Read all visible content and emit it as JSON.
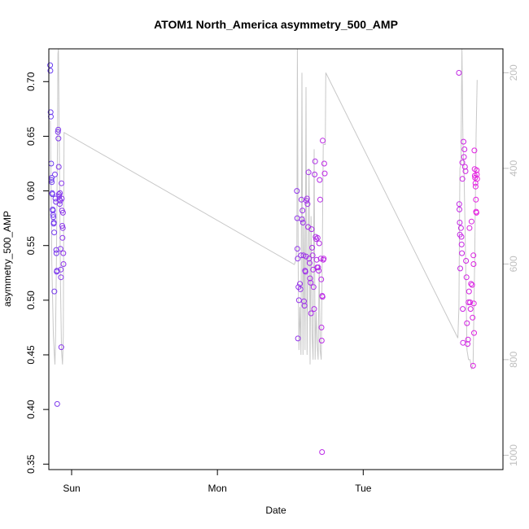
{
  "chart_data": {
    "type": "scatter",
    "title": "ATOM1 North_America asymmetry_500_AMP",
    "xlabel": "Date",
    "ylabel": "asymmetry_500_AMP",
    "x_axis": {
      "kind": "date",
      "range": [
        "Sat 20:15",
        "Tue 23:00"
      ],
      "tick_labels": [
        "Sun",
        "Mon",
        "Tue"
      ],
      "tick_values": [
        "Sun 00:00",
        "Mon 00:00",
        "Tue 00:00"
      ]
    },
    "y_axis": {
      "range": [
        0.345,
        0.73
      ],
      "ticks": [
        0.35,
        0.4,
        0.45,
        0.5,
        0.55,
        0.6,
        0.65,
        0.7
      ],
      "tick_labels": [
        "0.35",
        "0.40",
        "0.45",
        "0.50",
        "0.55",
        "0.60",
        "0.65",
        "0.70"
      ]
    },
    "y2_axis": {
      "range": [
        1030,
        150
      ],
      "ticks": [
        200,
        400,
        600,
        800,
        1000
      ],
      "tick_labels": [
        "200",
        "400",
        "600",
        "800",
        "1000"
      ],
      "color": "#bfbfbf"
    },
    "grid": false,
    "legend": "none",
    "series": [
      {
        "marker": "open-circle",
        "color_gradient": [
          "#6a3ff0",
          "#e81ee0"
        ],
        "points": [
          [
            "Sat 20:28",
            0.715
          ],
          [
            "Sat 20:30",
            0.71
          ],
          [
            "Sat 20:33",
            0.672
          ],
          [
            "Sat 20:35",
            0.668
          ],
          [
            "Sat 20:38",
            0.625
          ],
          [
            "Sat 20:40",
            0.61
          ],
          [
            "Sat 20:43",
            0.612
          ],
          [
            "Sat 20:45",
            0.608
          ],
          [
            "Sat 20:48",
            0.598
          ],
          [
            "Sat 20:50",
            0.597
          ],
          [
            "Sat 20:53",
            0.583
          ],
          [
            "Sat 20:55",
            0.582
          ],
          [
            "Sat 20:58",
            0.578
          ],
          [
            "Sat 21:00",
            0.576
          ],
          [
            "Sat 21:03",
            0.57
          ],
          [
            "Sat 21:05",
            0.571
          ],
          [
            "Sat 21:08",
            0.562
          ],
          [
            "Sat 21:10",
            0.508
          ],
          [
            "Sat 21:15",
            0.615
          ],
          [
            "Sat 21:20",
            0.593
          ],
          [
            "Sat 21:25",
            0.59
          ],
          [
            "Sat 21:28",
            0.546
          ],
          [
            "Sat 21:30",
            0.543
          ],
          [
            "Sat 21:33",
            0.526
          ],
          [
            "Sat 21:35",
            0.527
          ],
          [
            "Sat 21:38",
            0.405
          ],
          [
            "Sat 21:45",
            0.654
          ],
          [
            "Sat 21:48",
            0.656
          ],
          [
            "Sat 21:50",
            0.648
          ],
          [
            "Sat 21:53",
            0.622
          ],
          [
            "Sat 21:55",
            0.597
          ],
          [
            "Sat 21:58",
            0.595
          ],
          [
            "Sat 22:00",
            0.592
          ],
          [
            "Sat 22:03",
            0.588
          ],
          [
            "Sat 22:05",
            0.598
          ],
          [
            "Sat 22:08",
            0.591
          ],
          [
            "Sat 22:10",
            0.547
          ],
          [
            "Sat 22:13",
            0.528
          ],
          [
            "Sat 22:15",
            0.521
          ],
          [
            "Sat 22:18",
            0.457
          ],
          [
            "Sat 22:20",
            0.607
          ],
          [
            "Sat 22:23",
            0.593
          ],
          [
            "Sat 22:25",
            0.582
          ],
          [
            "Sat 22:28",
            0.568
          ],
          [
            "Sat 22:30",
            0.557
          ],
          [
            "Sat 22:33",
            0.566
          ],
          [
            "Sat 22:35",
            0.58
          ],
          [
            "Sat 22:38",
            0.543
          ],
          [
            "Sat 22:40",
            0.533
          ],
          [
            "Mon 13:05",
            0.6
          ],
          [
            "Mon 13:08",
            0.575
          ],
          [
            "Mon 13:10",
            0.547
          ],
          [
            "Mon 13:13",
            0.538
          ],
          [
            "Mon 13:15",
            0.465
          ],
          [
            "Mon 13:20",
            0.512
          ],
          [
            "Mon 13:25",
            0.5
          ],
          [
            "Mon 13:35",
            0.515
          ],
          [
            "Mon 13:40",
            0.51
          ],
          [
            "Mon 13:45",
            0.541
          ],
          [
            "Mon 13:50",
            0.592
          ],
          [
            "Mon 13:55",
            0.574
          ],
          [
            "Mon 14:00",
            0.582
          ],
          [
            "Mon 14:05",
            0.571
          ],
          [
            "Mon 14:10",
            0.541
          ],
          [
            "Mon 14:15",
            0.499
          ],
          [
            "Mon 14:20",
            0.495
          ],
          [
            "Mon 14:25",
            0.527
          ],
          [
            "Mon 14:30",
            0.526
          ],
          [
            "Mon 14:35",
            0.54
          ],
          [
            "Mon 14:40",
            0.591
          ],
          [
            "Mon 14:45",
            0.593
          ],
          [
            "Mon 14:50",
            0.588
          ],
          [
            "Mon 14:55",
            0.567
          ],
          [
            "Mon 15:00",
            0.617
          ],
          [
            "Mon 15:05",
            0.538
          ],
          [
            "Mon 15:10",
            0.534
          ],
          [
            "Mon 15:15",
            0.52
          ],
          [
            "Mon 15:20",
            0.516
          ],
          [
            "Mon 15:25",
            0.488
          ],
          [
            "Mon 15:30",
            0.565
          ],
          [
            "Mon 15:35",
            0.548
          ],
          [
            "Mon 15:40",
            0.541
          ],
          [
            "Mon 15:45",
            0.528
          ],
          [
            "Mon 15:50",
            0.512
          ],
          [
            "Mon 15:55",
            0.492
          ],
          [
            "Mon 16:00",
            0.615
          ],
          [
            "Mon 16:05",
            0.627
          ],
          [
            "Mon 16:10",
            0.558
          ],
          [
            "Mon 16:15",
            0.556
          ],
          [
            "Mon 16:20",
            0.537
          ],
          [
            "Mon 16:25",
            0.53
          ],
          [
            "Mon 16:30",
            0.557
          ],
          [
            "Mon 16:35",
            0.53
          ],
          [
            "Mon 16:40",
            0.527
          ],
          [
            "Mon 16:45",
            0.552
          ],
          [
            "Mon 16:50",
            0.61
          ],
          [
            "Mon 16:55",
            0.592
          ],
          [
            "Mon 17:00",
            0.538
          ],
          [
            "Mon 17:05",
            0.519
          ],
          [
            "Mon 17:08",
            0.475
          ],
          [
            "Mon 17:10",
            0.463
          ],
          [
            "Mon 17:13",
            0.361
          ],
          [
            "Mon 17:15",
            0.504
          ],
          [
            "Mon 17:18",
            0.503
          ],
          [
            "Mon 17:20",
            0.646
          ],
          [
            "Mon 17:25",
            0.537
          ],
          [
            "Mon 17:30",
            0.538
          ],
          [
            "Mon 17:35",
            0.625
          ],
          [
            "Mon 17:40",
            0.616
          ],
          [
            "Tue 15:45",
            0.708
          ],
          [
            "Tue 15:48",
            0.588
          ],
          [
            "Tue 15:50",
            0.583
          ],
          [
            "Tue 15:53",
            0.571
          ],
          [
            "Tue 15:55",
            0.56
          ],
          [
            "Tue 15:58",
            0.529
          ],
          [
            "Tue 16:05",
            0.566
          ],
          [
            "Tue 16:10",
            0.558
          ],
          [
            "Tue 16:12",
            0.551
          ],
          [
            "Tue 16:15",
            0.543
          ],
          [
            "Tue 16:18",
            0.626
          ],
          [
            "Tue 16:20",
            0.611
          ],
          [
            "Tue 16:23",
            0.492
          ],
          [
            "Tue 16:25",
            0.461
          ],
          [
            "Tue 16:30",
            0.645
          ],
          [
            "Tue 16:35",
            0.631
          ],
          [
            "Tue 16:40",
            0.638
          ],
          [
            "Tue 16:45",
            0.622
          ],
          [
            "Tue 16:50",
            0.618
          ],
          [
            "Tue 16:55",
            0.536
          ],
          [
            "Tue 17:00",
            0.521
          ],
          [
            "Tue 17:05",
            0.479
          ],
          [
            "Tue 17:10",
            0.46
          ],
          [
            "Tue 17:15",
            0.464
          ],
          [
            "Tue 17:20",
            0.498
          ],
          [
            "Tue 17:25",
            0.508
          ],
          [
            "Tue 17:30",
            0.566
          ],
          [
            "Tue 17:35",
            0.498
          ],
          [
            "Tue 17:40",
            0.492
          ],
          [
            "Tue 17:45",
            0.515
          ],
          [
            "Tue 17:50",
            0.572
          ],
          [
            "Tue 17:55",
            0.514
          ],
          [
            "Tue 18:00",
            0.484
          ],
          [
            "Tue 18:05",
            0.44
          ],
          [
            "Tue 18:08",
            0.541
          ],
          [
            "Tue 18:10",
            0.533
          ],
          [
            "Tue 18:12",
            0.497
          ],
          [
            "Tue 18:15",
            0.47
          ],
          [
            "Tue 18:18",
            0.637
          ],
          [
            "Tue 18:20",
            0.62
          ],
          [
            "Tue 18:22",
            0.614
          ],
          [
            "Tue 18:25",
            0.612
          ],
          [
            "Tue 18:28",
            0.607
          ],
          [
            "Tue 18:30",
            0.604
          ],
          [
            "Tue 18:33",
            0.592
          ],
          [
            "Tue 18:35",
            0.581
          ],
          [
            "Tue 18:38",
            0.58
          ],
          [
            "Tue 18:40",
            0.619
          ],
          [
            "Tue 18:42",
            0.615
          ],
          [
            "Tue 18:45",
            0.611
          ]
        ]
      },
      {
        "style": "line",
        "axis": "right",
        "color": "#c8c8c8",
        "points": [
          [
            "Sat 20:30",
            300
          ],
          [
            "Sat 20:45",
            600
          ],
          [
            "Sat 21:00",
            750
          ],
          [
            "Sat 21:10",
            790
          ],
          [
            "Sat 21:15",
            810
          ],
          [
            "Sat 21:20",
            770
          ],
          [
            "Sat 21:30",
            600
          ],
          [
            "Sat 21:40",
            350
          ],
          [
            "Sat 21:45",
            160
          ],
          [
            "Sat 21:50",
            150
          ],
          [
            "Sat 22:00",
            400
          ],
          [
            "Sat 22:10",
            640
          ],
          [
            "Sat 22:20",
            780
          ],
          [
            "Sat 22:30",
            810
          ],
          [
            "Sat 22:38",
            750
          ],
          [
            "Sat 22:42",
            500
          ],
          [
            "Sat 22:45",
            325
          ],
          [
            "Mon 12:40",
            601
          ],
          [
            "Mon 12:55",
            591
          ],
          [
            "Mon 13:05",
            560
          ],
          [
            "Mon 13:10",
            150
          ],
          [
            "Mon 13:18",
            600
          ],
          [
            "Mon 13:25",
            780
          ],
          [
            "Mon 13:35",
            690
          ],
          [
            "Mon 13:45",
            790
          ],
          [
            "Mon 13:55",
            200
          ],
          [
            "Mon 14:05",
            790
          ],
          [
            "Mon 14:15",
            500
          ],
          [
            "Mon 14:25",
            780
          ],
          [
            "Mon 14:35",
            230
          ],
          [
            "Mon 14:45",
            790
          ],
          [
            "Mon 14:55",
            600
          ],
          [
            "Mon 15:05",
            400
          ],
          [
            "Mon 15:15",
            810
          ],
          [
            "Mon 15:25",
            500
          ],
          [
            "Mon 15:35",
            750
          ],
          [
            "Mon 15:45",
            800
          ],
          [
            "Mon 15:55",
            360
          ],
          [
            "Mon 16:05",
            800
          ],
          [
            "Mon 16:15",
            700
          ],
          [
            "Mon 16:25",
            770
          ],
          [
            "Mon 16:35",
            800
          ],
          [
            "Mon 16:45",
            600
          ],
          [
            "Mon 16:55",
            780
          ],
          [
            "Mon 17:05",
            800
          ],
          [
            "Mon 17:15",
            600
          ],
          [
            "Mon 17:25",
            350
          ],
          [
            "Mon 17:45",
            350
          ],
          [
            "Mon 17:50",
            200
          ],
          [
            "Tue 15:35",
            755
          ],
          [
            "Tue 15:45",
            690
          ],
          [
            "Tue 15:55",
            400
          ],
          [
            "Tue 16:05",
            390
          ],
          [
            "Tue 16:15",
            150
          ],
          [
            "Tue 16:25",
            350
          ],
          [
            "Tue 16:35",
            400
          ],
          [
            "Tue 16:50",
            580
          ],
          [
            "Tue 17:05",
            780
          ],
          [
            "Tue 17:20",
            800
          ],
          [
            "Tue 17:35",
            800
          ],
          [
            "Tue 17:50",
            820
          ],
          [
            "Tue 18:05",
            810
          ],
          [
            "Tue 18:20",
            600
          ],
          [
            "Tue 18:35",
            330
          ],
          [
            "Tue 18:45",
            215
          ]
        ]
      }
    ]
  }
}
